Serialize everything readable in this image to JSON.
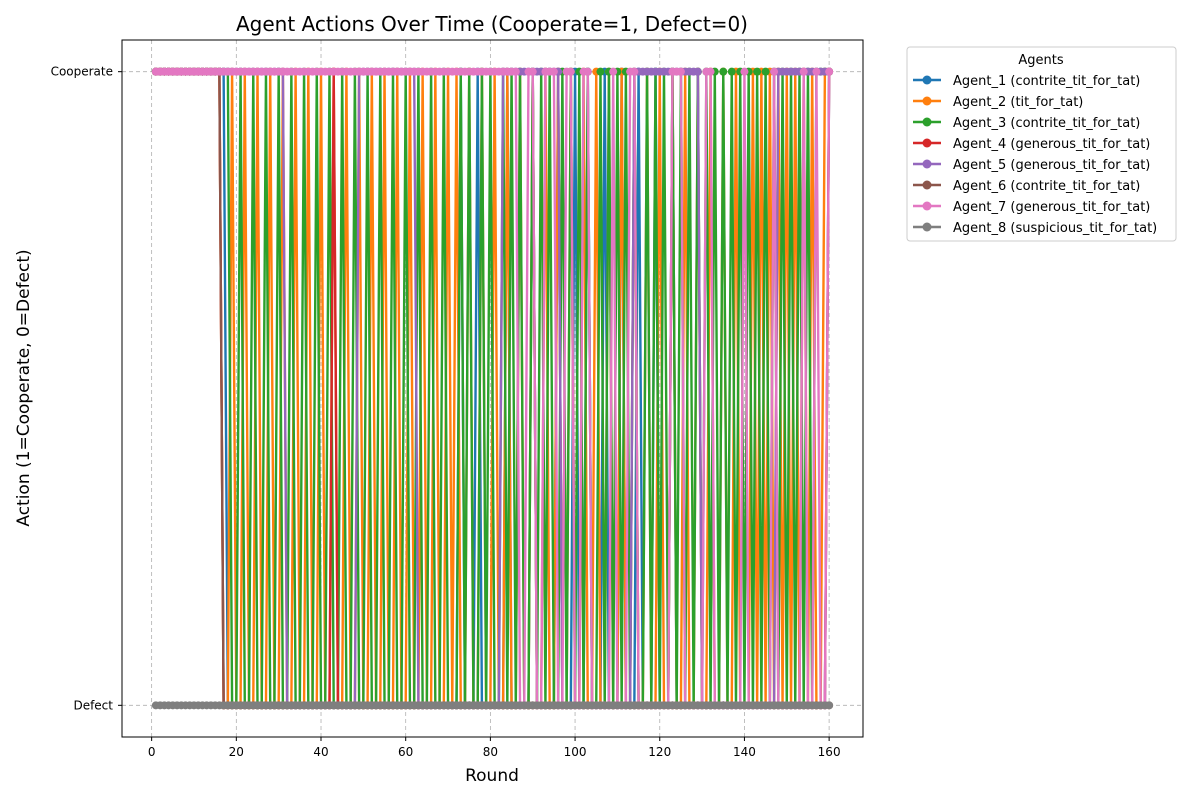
{
  "chart_data": {
    "type": "line",
    "title": "Agent Actions Over Time (Cooperate=1, Defect=0)",
    "xlabel": "Round",
    "ylabel": "Action (1=Cooperate, 0=Defect)",
    "xlim": [
      -7,
      168
    ],
    "ylim": [
      -0.05,
      1.05
    ],
    "xticks": [
      0,
      20,
      40,
      60,
      80,
      100,
      120,
      140,
      160
    ],
    "yticks": [
      0,
      1
    ],
    "ytick_labels": [
      "Defect",
      "Cooperate"
    ],
    "grid": true,
    "grid_style": "dashed",
    "legend": {
      "title": "Agents",
      "placement": "outside-top-right"
    },
    "rounds": [
      1,
      160
    ],
    "series": [
      {
        "name": "Agent_1 (contrite_tit_for_tat)",
        "color": "#1f77b4",
        "defect_rounds": [
          18,
          19,
          20,
          21,
          22,
          23,
          24,
          25,
          26,
          27,
          28,
          29,
          30,
          31,
          32,
          33,
          34,
          35,
          36,
          37,
          38,
          39,
          40,
          41,
          42,
          43,
          44,
          45,
          46,
          47,
          48,
          49,
          50,
          51,
          52,
          53,
          54,
          55,
          56,
          57,
          58,
          59,
          60,
          61,
          62,
          63,
          64,
          65,
          66,
          67,
          68,
          69,
          70,
          71,
          72,
          74,
          75,
          76,
          78,
          79,
          80,
          81,
          82,
          83,
          85,
          86,
          87,
          88,
          89,
          91,
          92,
          93,
          94,
          95,
          97,
          98,
          99,
          101,
          102,
          104,
          105,
          106,
          108,
          109,
          110,
          112,
          113,
          114,
          116,
          117,
          118,
          120,
          121,
          122,
          124,
          125,
          126,
          127,
          128,
          129,
          130,
          131,
          132,
          133,
          134,
          135,
          136,
          137,
          138,
          139,
          140,
          141,
          142,
          143,
          144,
          145,
          146,
          147,
          148,
          149,
          150,
          151,
          152,
          153,
          154,
          155,
          156,
          157,
          158,
          159
        ]
      },
      {
        "name": "Agent_2 (tit_for_tat)",
        "color": "#ff7f0e",
        "defect_rounds": [
          17,
          18,
          20,
          21,
          23,
          24,
          26,
          27,
          29,
          30,
          32,
          33,
          35,
          36,
          38,
          39,
          41,
          42,
          44,
          45,
          47,
          48,
          50,
          51,
          53,
          54,
          56,
          57,
          59,
          60,
          62,
          63,
          65,
          66,
          68,
          69,
          71,
          73,
          74,
          76,
          77,
          79,
          80,
          82,
          83,
          85,
          86,
          88,
          89,
          91,
          92,
          94,
          95,
          97,
          98,
          100,
          101,
          103,
          104,
          106,
          107,
          109,
          110,
          112,
          113,
          115,
          116,
          118,
          119,
          121,
          122,
          124,
          125,
          127,
          128,
          130,
          131,
          133,
          134,
          136,
          137,
          139,
          140,
          141,
          143,
          145,
          147,
          149,
          151,
          153,
          155,
          157,
          158
        ]
      },
      {
        "name": "Agent_3 (contrite_tit_for_tat)",
        "color": "#2ca02c",
        "defect_rounds": [
          19,
          20,
          22,
          23,
          25,
          26,
          28,
          29,
          31,
          32,
          34,
          35,
          37,
          38,
          40,
          41,
          43,
          44,
          46,
          47,
          49,
          50,
          52,
          53,
          55,
          56,
          58,
          59,
          61,
          62,
          64,
          65,
          67,
          68,
          70,
          71,
          72,
          74,
          76,
          77,
          79,
          81,
          82,
          84,
          86,
          88,
          89,
          91,
          93,
          95,
          96,
          98,
          100,
          102,
          104,
          105,
          107,
          109,
          111,
          113,
          115,
          116,
          118,
          120,
          122,
          124,
          126,
          128,
          130,
          132,
          134,
          136,
          138,
          140,
          142,
          144,
          146,
          148,
          150,
          152,
          154,
          156
        ]
      },
      {
        "name": "Agent_4 (generous_tit_for_tat)",
        "color": "#d62728",
        "defect_rounds": [
          17,
          18,
          19,
          20,
          21,
          22,
          23,
          24,
          25,
          26,
          27,
          28,
          29,
          30,
          31,
          32,
          33,
          34,
          35,
          36,
          37,
          38,
          39,
          40,
          41,
          42,
          44,
          45,
          46,
          47,
          48,
          49,
          50,
          51,
          52,
          53,
          54,
          55,
          56,
          57,
          58,
          59,
          60,
          61,
          62,
          63,
          64,
          65,
          66,
          67,
          68,
          69,
          70,
          71,
          72,
          73,
          74,
          75,
          76,
          77,
          78,
          79,
          80,
          81,
          82,
          83,
          84,
          85,
          86,
          87,
          88,
          89,
          90,
          91,
          92,
          93,
          94,
          95,
          96,
          97,
          98,
          99,
          100,
          101,
          102,
          103,
          104,
          105,
          106,
          107,
          108,
          109,
          110,
          111,
          112,
          113,
          114,
          115,
          116,
          117,
          118,
          119,
          120,
          121,
          122,
          123,
          124,
          125,
          126,
          127,
          128,
          129,
          130,
          131,
          132,
          133,
          134,
          135,
          136,
          137,
          138,
          139,
          140,
          141,
          142,
          143,
          144,
          145,
          146,
          147,
          148,
          149,
          150,
          151,
          152,
          153,
          154,
          155,
          156,
          157,
          158,
          159
        ]
      },
      {
        "name": "Agent_5 (generous_tit_for_tat)",
        "color": "#9467bd",
        "defect_rounds": [
          32,
          33,
          34,
          35,
          36,
          37,
          38,
          39,
          40,
          41,
          42,
          43,
          44,
          45,
          46,
          47,
          48,
          63,
          64,
          65,
          66,
          67,
          68,
          69,
          70,
          71,
          72,
          73,
          74,
          75,
          76,
          77,
          78,
          79,
          80,
          81,
          82,
          97,
          98,
          99,
          100,
          101,
          102,
          103,
          104,
          105,
          106,
          107,
          108,
          109,
          110,
          111,
          112,
          113,
          130,
          131,
          132,
          133,
          134,
          135,
          136,
          137,
          138,
          139,
          140,
          141,
          142,
          143,
          144,
          145,
          146,
          147
        ]
      },
      {
        "name": "Agent_6 (contrite_tit_for_tat)",
        "color": "#8c564b",
        "defect_rounds": [
          17,
          18,
          19,
          20,
          21,
          22,
          23,
          24,
          25,
          26,
          27,
          28,
          29,
          30,
          31,
          32,
          33,
          34,
          35,
          36,
          37,
          38,
          39,
          40,
          41,
          42,
          43,
          44,
          45,
          46,
          47,
          48,
          49,
          50,
          51,
          52,
          53,
          54,
          55,
          56,
          57,
          58,
          59,
          60,
          61,
          62,
          63,
          64,
          65,
          66,
          67,
          68,
          69,
          70,
          71,
          72,
          73,
          74,
          75,
          76,
          77,
          78,
          79,
          80,
          81,
          82,
          83,
          84,
          85,
          86,
          87,
          88,
          89,
          90,
          91,
          92,
          93,
          94,
          95,
          96,
          97,
          98,
          99,
          100,
          101,
          102,
          103,
          104,
          105,
          106,
          107,
          108,
          109,
          110,
          111,
          112,
          113,
          114,
          115,
          116,
          117,
          118,
          119,
          120,
          121,
          122,
          123,
          124,
          125,
          126,
          127,
          128,
          129,
          130,
          131,
          132,
          133,
          134,
          135,
          136,
          137,
          138,
          139,
          140,
          141,
          142,
          143,
          144,
          145,
          146,
          147,
          148,
          149,
          150,
          151,
          152,
          153,
          154,
          155,
          156,
          157,
          158,
          159,
          160
        ]
      },
      {
        "name": "Agent_7 (generous_tit_for_tat)",
        "color": "#e377c2",
        "defect_rounds": [
          87,
          88,
          91,
          92,
          96,
          97,
          100,
          101,
          104,
          105,
          106,
          107,
          108,
          110,
          111,
          112,
          115,
          116,
          117,
          118,
          119,
          120,
          121,
          122,
          126,
          127,
          128,
          129,
          130,
          133,
          134,
          135,
          136,
          137,
          138,
          139,
          141,
          142,
          143,
          144,
          145,
          146,
          148,
          149,
          150,
          151,
          152,
          153,
          155,
          156,
          158,
          159
        ]
      },
      {
        "name": "Agent_8 (suspicious_tit_for_tat)",
        "color": "#7f7f7f",
        "defect_rounds": [
          1,
          2,
          3,
          4,
          5,
          6,
          7,
          8,
          9,
          10,
          11,
          12,
          13,
          14,
          15,
          16,
          17,
          18,
          19,
          20,
          21,
          22,
          23,
          24,
          25,
          26,
          27,
          28,
          29,
          30,
          31,
          32,
          33,
          34,
          35,
          36,
          37,
          38,
          39,
          40,
          41,
          42,
          43,
          44,
          45,
          46,
          47,
          48,
          49,
          50,
          51,
          52,
          53,
          54,
          55,
          56,
          57,
          58,
          59,
          60,
          61,
          62,
          63,
          64,
          65,
          66,
          67,
          68,
          69,
          70,
          71,
          72,
          73,
          74,
          75,
          76,
          77,
          78,
          79,
          80,
          81,
          82,
          83,
          84,
          85,
          86,
          87,
          88,
          89,
          90,
          91,
          92,
          93,
          94,
          95,
          96,
          97,
          98,
          99,
          100,
          101,
          102,
          103,
          104,
          105,
          106,
          107,
          108,
          109,
          110,
          111,
          112,
          113,
          114,
          115,
          116,
          117,
          118,
          119,
          120,
          121,
          122,
          123,
          124,
          125,
          126,
          127,
          128,
          129,
          130,
          131,
          132,
          133,
          134,
          135,
          136,
          137,
          138,
          139,
          140,
          141,
          142,
          143,
          144,
          145,
          146,
          147,
          148,
          149,
          150,
          151,
          152,
          153,
          154,
          155,
          156,
          157,
          158,
          159,
          160
        ]
      }
    ]
  }
}
